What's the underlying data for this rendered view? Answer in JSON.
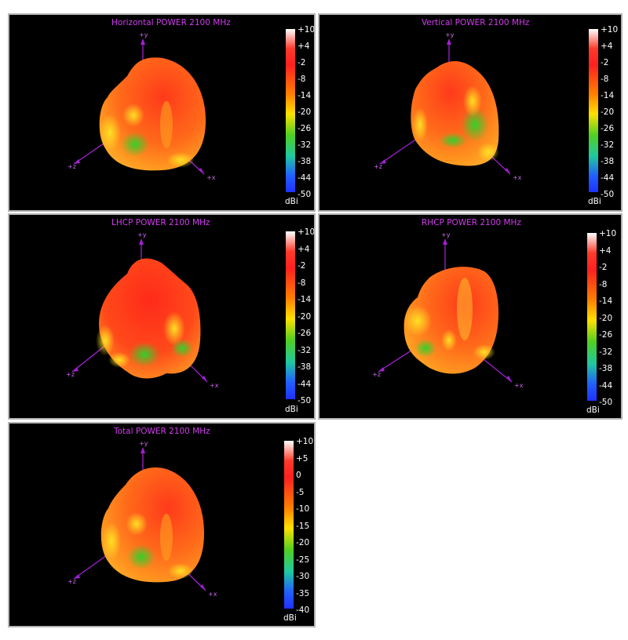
{
  "panels": [
    {
      "id": "horizontal",
      "title": "Horizontal POWER 2100  MHz",
      "ticks": [
        "+10",
        "+4",
        "-2",
        "-8",
        "-14",
        "-20",
        "-26",
        "-32",
        "-38",
        "-44",
        "-50"
      ],
      "unit": "dBi",
      "axes": {
        "y": "+y",
        "x": "+x",
        "z": "+z"
      }
    },
    {
      "id": "vertical",
      "title": "Vertical POWER 2100  MHz",
      "ticks": [
        "+10",
        "+4",
        "-2",
        "-8",
        "-14",
        "-20",
        "-26",
        "-32",
        "-38",
        "-44",
        "-50"
      ],
      "unit": "dBi",
      "axes": {
        "y": "+y",
        "x": "+x",
        "z": "+z"
      }
    },
    {
      "id": "lhcp",
      "title": "LHCP POWER 2100  MHz",
      "ticks": [
        "+10",
        "+4",
        "-2",
        "-8",
        "-14",
        "-20",
        "-26",
        "-32",
        "-38",
        "-44",
        "-50"
      ],
      "unit": "dBi",
      "axes": {
        "y": "+y",
        "x": "+x",
        "z": "+z"
      }
    },
    {
      "id": "rhcp",
      "title": "RHCP POWER 2100  MHz",
      "ticks": [
        "+10",
        "+4",
        "-2",
        "-8",
        "-14",
        "-20",
        "-26",
        "-32",
        "-38",
        "-44",
        "-50"
      ],
      "unit": "dBi",
      "axes": {
        "y": "+y",
        "x": "+x",
        "z": "+z"
      }
    },
    {
      "id": "total",
      "title": "Total POWER 2100  MHz",
      "ticks": [
        "+10",
        "+5",
        "0",
        "-5",
        "-10",
        "-15",
        "-20",
        "-25",
        "-30",
        "-35",
        "-40"
      ],
      "unit": "dBi",
      "axes": {
        "y": "+y",
        "x": "+x",
        "z": "+z"
      }
    }
  ],
  "colors": {
    "title": "#d23cf0",
    "axis": "#a020d0",
    "colorbar": [
      "#ffffff",
      "#ff2020",
      "#ff8000",
      "#ffe000",
      "#40d020",
      "#20c8c8",
      "#2040ff"
    ]
  }
}
